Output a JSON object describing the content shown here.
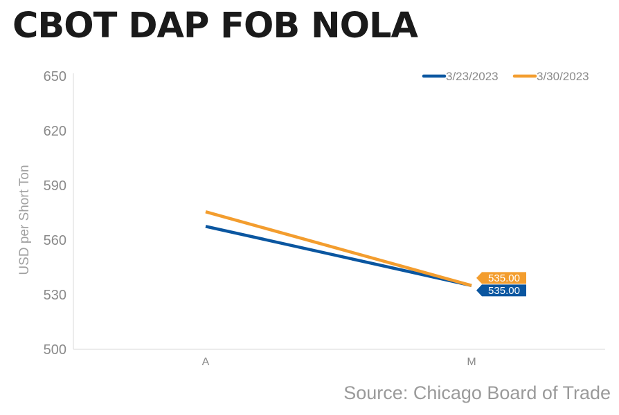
{
  "chart_data": {
    "type": "line",
    "title": "CBOT DAP FOB NOLA",
    "source": "Source: Chicago Board of Trade",
    "ylabel": "USD per Short Ton",
    "xlabel": "",
    "ylim": [
      500,
      650
    ],
    "yticks": [
      500,
      530,
      560,
      590,
      620,
      650
    ],
    "categories": [
      "A",
      "M"
    ],
    "grid": false,
    "legend_position": "top-right",
    "series": [
      {
        "name": "3/23/2023",
        "color": "#0a56a0",
        "values": [
          567.5,
          535
        ],
        "labels": [
          "",
          "535.00"
        ]
      },
      {
        "name": "3/30/2023",
        "color": "#f39d2e",
        "values": [
          575.5,
          535
        ],
        "labels": [
          "",
          "535.00"
        ]
      }
    ]
  }
}
